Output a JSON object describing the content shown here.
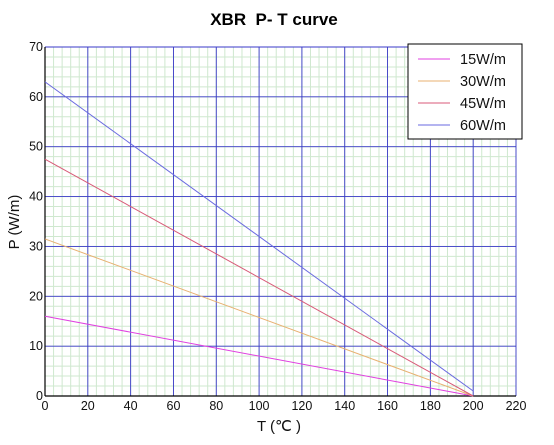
{
  "chart_data": {
    "type": "line",
    "title": "XBR  P- T curve",
    "xlabel": "T (℃ )",
    "ylabel": "P (W/m)",
    "xlim": [
      0,
      220
    ],
    "ylim": [
      0,
      70
    ],
    "x_ticks": [
      "0",
      "20",
      "40",
      "60",
      "80",
      "100",
      "120",
      "140",
      "160",
      "180",
      "200",
      "220"
    ],
    "y_ticks": [
      "0",
      "10",
      "20",
      "30",
      "40",
      "50",
      "60",
      "70"
    ],
    "grid": true,
    "legend_position": "top-right",
    "series": [
      {
        "name": "15W/m",
        "color": "#e040e0",
        "x": [
          0,
          200
        ],
        "y": [
          16,
          0
        ]
      },
      {
        "name": "30W/m",
        "color": "#e8b070",
        "x": [
          0,
          200
        ],
        "y": [
          31.5,
          0
        ]
      },
      {
        "name": "45W/m",
        "color": "#d85a78",
        "x": [
          0,
          200
        ],
        "y": [
          47.5,
          0
        ]
      },
      {
        "name": "60W/m",
        "color": "#6a6ae0",
        "x": [
          0,
          200
        ],
        "y": [
          63,
          1
        ]
      }
    ],
    "colors": {
      "major_grid": "#3a3ac8",
      "minor_grid": "#cfe8cf",
      "axis": "#000000"
    }
  }
}
